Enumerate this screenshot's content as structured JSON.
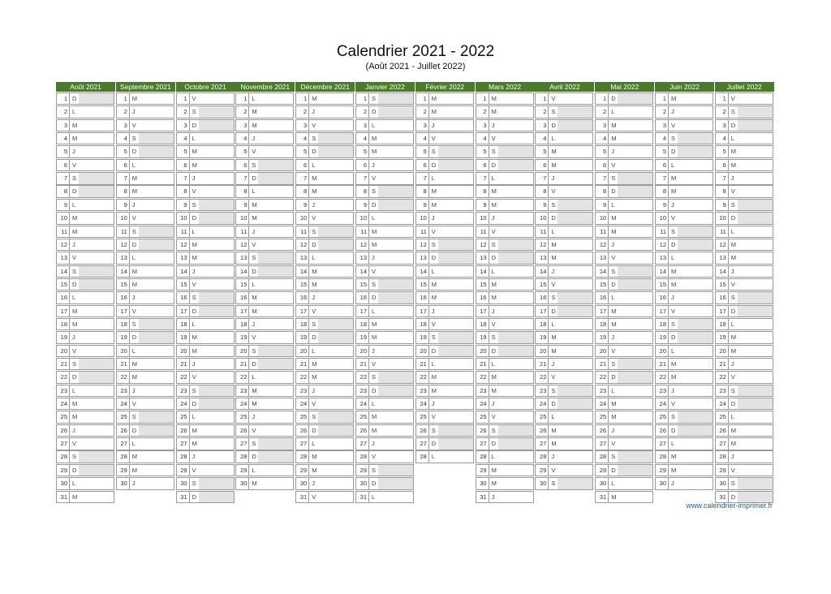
{
  "title": "Calendrier 2021 - 2022",
  "subtitle": "(Août 2021 - Juillet 2022)",
  "footer": "www.calendrier-imprimer.fr",
  "colors": {
    "header_bg": "#4b7a2c",
    "weekend_shade": "#e3e3e3",
    "footer_link": "#1f5fa8"
  },
  "months": [
    {
      "name": "Août 2021",
      "days": 31,
      "first": "D"
    },
    {
      "name": "Septembre 2021",
      "days": 30,
      "first": "M"
    },
    {
      "name": "Octobre 2021",
      "days": 31,
      "first": "V"
    },
    {
      "name": "Novembre 2021",
      "days": 30,
      "first": "L"
    },
    {
      "name": "Décembre 2021",
      "days": 31,
      "first": "M"
    },
    {
      "name": "Janvier 2022",
      "days": 31,
      "first": "S"
    },
    {
      "name": "Février 2022",
      "days": 28,
      "first": "M"
    },
    {
      "name": "Mars 2022",
      "days": 31,
      "first": "M"
    },
    {
      "name": "Avril 2022",
      "days": 30,
      "first": "V"
    },
    {
      "name": "Mai 2022",
      "days": 31,
      "first": "D"
    },
    {
      "name": "Juin 2022",
      "days": 30,
      "first": "M"
    },
    {
      "name": "Juillet 2022",
      "days": 31,
      "first": "V"
    }
  ],
  "weekday_letters": [
    "L",
    "M",
    "M",
    "J",
    "V",
    "S",
    "D"
  ]
}
